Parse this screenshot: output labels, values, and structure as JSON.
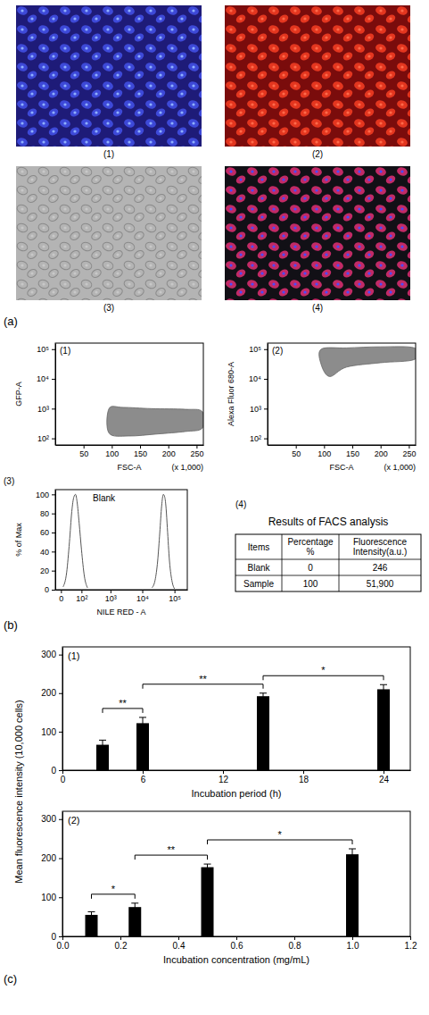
{
  "figure_labels": [
    "(a)",
    "(b)",
    "(c)"
  ],
  "micrographs": {
    "panels": [
      "(1)",
      "(2)",
      "(3)",
      "(4)"
    ]
  },
  "table": {
    "panel": "(4)",
    "title": "Results of FACS analysis",
    "columns": [
      "Items",
      "Percentage %",
      "Fluorescence Intensity(a.u.)"
    ],
    "rows": [
      [
        "Blank",
        "0",
        "246"
      ],
      [
        "Sample",
        "100",
        "51,900"
      ]
    ]
  },
  "chart_data": [
    {
      "type": "scatter",
      "panel": "(1)",
      "x_label": "FSC-A",
      "x_label_note": "(x 1,000)",
      "y_label": "GFP-A",
      "log": "y",
      "xlim": [
        0,
        262
      ],
      "xticks": [
        50,
        100,
        150,
        200,
        250
      ],
      "ylim": [
        60,
        160000
      ],
      "yticks": [
        {
          "value": 100,
          "label": "10²"
        },
        {
          "value": 1000,
          "label": "10³"
        },
        {
          "value": 10000,
          "label": "10⁴"
        },
        {
          "value": 100000,
          "label": "10⁵"
        }
      ],
      "color": "#8c8c8c",
      "cloud": {
        "x": [
          95,
          130,
          180,
          230,
          260,
          260,
          230,
          170,
          120,
          95
        ],
        "y": [
          150,
          120,
          140,
          170,
          220,
          800,
          950,
          1000,
          1100,
          1000
        ]
      }
    },
    {
      "type": "scatter",
      "panel": "(2)",
      "x_label": "FSC-A",
      "x_label_note": "(x 1,000)",
      "y_label": "Alexa Fluor 680-A",
      "log": "y",
      "xlim": [
        0,
        262
      ],
      "xticks": [
        50,
        100,
        150,
        200,
        250
      ],
      "ylim": [
        60,
        160000
      ],
      "yticks": [
        {
          "value": 100,
          "label": "10²"
        },
        {
          "value": 1000,
          "label": "10³"
        },
        {
          "value": 10000,
          "label": "10⁴"
        },
        {
          "value": 100000,
          "label": "10⁵"
        }
      ],
      "color": "#8c8c8c",
      "cloud": {
        "x": [
          95,
          110,
          140,
          200,
          260,
          260,
          200,
          140,
          95
        ],
        "y": [
          30000,
          12000,
          25000,
          35000,
          45000,
          110000,
          120000,
          110000,
          100000
        ]
      }
    },
    {
      "type": "line",
      "panel": "(3)",
      "x_label": "NILE RED - A",
      "y_label": "% of Max",
      "log": "x",
      "xlim": [
        -15,
        250000
      ],
      "xticks": [
        0,
        {
          "value": 100,
          "label": "10²"
        },
        {
          "value": 1000,
          "label": "10³"
        },
        {
          "value": 10000,
          "label": "10⁴"
        },
        {
          "value": 100000,
          "label": "10⁵"
        }
      ],
      "ylim": [
        0,
        105
      ],
      "yticks": [
        0,
        20,
        40,
        60,
        80,
        100
      ],
      "series": [
        {
          "name": "Blank",
          "color": "#555555",
          "x": [
            5,
            15,
            25,
            35,
            45,
            55,
            65,
            80,
            100,
            130,
            170
          ],
          "values": [
            3,
            18,
            50,
            82,
            97,
            100,
            92,
            70,
            42,
            14,
            2
          ]
        },
        {
          "color": "#555555",
          "x": [
            20000,
            25000,
            30000,
            35000,
            40000,
            45000,
            50000,
            55000,
            60000,
            70000,
            85000,
            100000
          ],
          "values": [
            2,
            10,
            30,
            60,
            88,
            100,
            97,
            85,
            65,
            30,
            8,
            1
          ]
        }
      ]
    },
    {
      "type": "bar",
      "panel": "(1)",
      "x_label": "Incubation period (h)",
      "xlim": [
        0,
        26
      ],
      "xticks": [
        0,
        6,
        12,
        18,
        24
      ],
      "ylim": [
        0,
        320
      ],
      "yticks": [
        0,
        100,
        200,
        300
      ],
      "color": "#000000",
      "x": [
        3,
        6,
        15,
        24
      ],
      "values": [
        66,
        122,
        192,
        210
      ],
      "errors": [
        12,
        15,
        8,
        12
      ],
      "significance": [
        {
          "from": 3,
          "to": 6,
          "label": "**"
        },
        {
          "from": 6,
          "to": 15,
          "label": "**"
        },
        {
          "from": 15,
          "to": 24,
          "label": "*"
        }
      ]
    },
    {
      "type": "bar",
      "panel": "(2)",
      "x_label": "Incubation concentration (mg/mL)",
      "y_label": "Mean fluorescence intensity (10,000 cells)",
      "xlim": [
        0,
        1.2
      ],
      "xticks": [
        {
          "value": 0,
          "label": "0.0"
        },
        0.2,
        0.4,
        0.6,
        0.8,
        {
          "value": 1,
          "label": "1.0"
        },
        1.2
      ],
      "ylim": [
        0,
        320
      ],
      "yticks": [
        0,
        100,
        200,
        300
      ],
      "color": "#000000",
      "x": [
        0.1,
        0.25,
        0.5,
        1.0
      ],
      "values": [
        55,
        75,
        177,
        210
      ],
      "errors": [
        8,
        10,
        8,
        14
      ],
      "significance": [
        {
          "from": 0.1,
          "to": 0.25,
          "label": "*"
        },
        {
          "from": 0.25,
          "to": 0.5,
          "label": "**"
        },
        {
          "from": 0.5,
          "to": 1,
          "label": "*"
        }
      ]
    }
  ]
}
